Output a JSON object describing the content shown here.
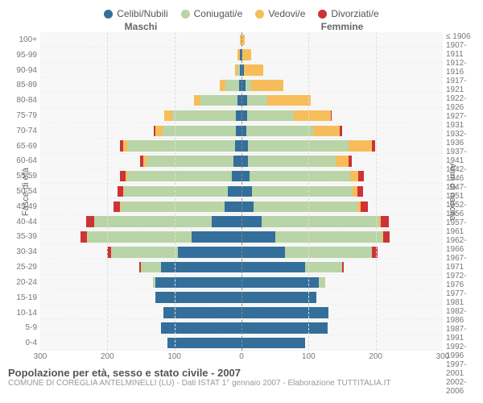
{
  "type": "population-pyramid",
  "legend": [
    {
      "label": "Celibi/Nubili",
      "color": "#346f9b"
    },
    {
      "label": "Coniugati/e",
      "color": "#b9d4a6"
    },
    {
      "label": "Vedovi/e",
      "color": "#f7bd5a"
    },
    {
      "label": "Divorziati/e",
      "color": "#cd3336"
    }
  ],
  "columns": {
    "male": "Maschi",
    "female": "Femmine"
  },
  "axis": {
    "left_title": "Fasce di età",
    "right_title": "Anni di nascita",
    "x_max": 300,
    "x_ticks": [
      300,
      200,
      100,
      0,
      100,
      200,
      300
    ]
  },
  "colors": {
    "single": "#346f9b",
    "married": "#b9d4a6",
    "widowed": "#f7bd5a",
    "divorced": "#cd3336",
    "bg": "#f7f7f7",
    "grid": "#dddddd",
    "zero": "#888888"
  },
  "footer": {
    "title": "Popolazione per età, sesso e stato civile - 2007",
    "sub": "COMUNE DI COREGLIA ANTELMINELLI (LU) - Dati ISTAT 1° gennaio 2007 - Elaborazione TUTTITALIA.IT"
  },
  "age_labels": [
    "100+",
    "95-99",
    "90-94",
    "85-89",
    "80-84",
    "75-79",
    "70-74",
    "65-69",
    "60-64",
    "55-59",
    "50-54",
    "45-49",
    "40-44",
    "35-39",
    "30-34",
    "25-29",
    "20-24",
    "15-19",
    "10-14",
    "5-9",
    "0-4"
  ],
  "year_labels": [
    "≤ 1906",
    "1907-1911",
    "1912-1916",
    "1917-1921",
    "1922-1926",
    "1927-1931",
    "1932-1936",
    "1937-1941",
    "1942-1946",
    "1947-1951",
    "1952-1956",
    "1957-1961",
    "1962-1966",
    "1967-1971",
    "1972-1976",
    "1977-1981",
    "1982-1986",
    "1987-1991",
    "1992-1996",
    "1997-2001",
    "2002-2006"
  ],
  "rows": [
    {
      "m": {
        "s": 0,
        "c": 0,
        "w": 2,
        "d": 0
      },
      "f": {
        "s": 0,
        "c": 0,
        "w": 5,
        "d": 0
      }
    },
    {
      "m": {
        "s": 2,
        "c": 1,
        "w": 3,
        "d": 0
      },
      "f": {
        "s": 1,
        "c": 0,
        "w": 13,
        "d": 0
      }
    },
    {
      "m": {
        "s": 2,
        "c": 4,
        "w": 4,
        "d": 0
      },
      "f": {
        "s": 3,
        "c": 1,
        "w": 28,
        "d": 0
      }
    },
    {
      "m": {
        "s": 4,
        "c": 20,
        "w": 8,
        "d": 0
      },
      "f": {
        "s": 6,
        "c": 8,
        "w": 48,
        "d": 0
      }
    },
    {
      "m": {
        "s": 6,
        "c": 55,
        "w": 10,
        "d": 0
      },
      "f": {
        "s": 8,
        "c": 30,
        "w": 65,
        "d": 0
      }
    },
    {
      "m": {
        "s": 8,
        "c": 95,
        "w": 12,
        "d": 0
      },
      "f": {
        "s": 8,
        "c": 70,
        "w": 55,
        "d": 2
      }
    },
    {
      "m": {
        "s": 8,
        "c": 110,
        "w": 10,
        "d": 3
      },
      "f": {
        "s": 7,
        "c": 100,
        "w": 40,
        "d": 3
      }
    },
    {
      "m": {
        "s": 10,
        "c": 160,
        "w": 6,
        "d": 5
      },
      "f": {
        "s": 9,
        "c": 150,
        "w": 35,
        "d": 5
      }
    },
    {
      "m": {
        "s": 12,
        "c": 130,
        "w": 4,
        "d": 5
      },
      "f": {
        "s": 10,
        "c": 130,
        "w": 20,
        "d": 5
      }
    },
    {
      "m": {
        "s": 15,
        "c": 155,
        "w": 3,
        "d": 8
      },
      "f": {
        "s": 12,
        "c": 150,
        "w": 12,
        "d": 8
      }
    },
    {
      "m": {
        "s": 20,
        "c": 155,
        "w": 2,
        "d": 8
      },
      "f": {
        "s": 15,
        "c": 150,
        "w": 8,
        "d": 8
      }
    },
    {
      "m": {
        "s": 25,
        "c": 155,
        "w": 1,
        "d": 10
      },
      "f": {
        "s": 18,
        "c": 155,
        "w": 5,
        "d": 10
      }
    },
    {
      "m": {
        "s": 45,
        "c": 175,
        "w": 0,
        "d": 12
      },
      "f": {
        "s": 30,
        "c": 175,
        "w": 3,
        "d": 12
      }
    },
    {
      "m": {
        "s": 75,
        "c": 155,
        "w": 0,
        "d": 10
      },
      "f": {
        "s": 50,
        "c": 160,
        "w": 1,
        "d": 10
      }
    },
    {
      "m": {
        "s": 95,
        "c": 100,
        "w": 0,
        "d": 6
      },
      "f": {
        "s": 65,
        "c": 130,
        "w": 0,
        "d": 8
      }
    },
    {
      "m": {
        "s": 120,
        "c": 30,
        "w": 0,
        "d": 2
      },
      "f": {
        "s": 95,
        "c": 55,
        "w": 0,
        "d": 3
      }
    },
    {
      "m": {
        "s": 128,
        "c": 4,
        "w": 0,
        "d": 0
      },
      "f": {
        "s": 115,
        "c": 10,
        "w": 0,
        "d": 0
      }
    },
    {
      "m": {
        "s": 128,
        "c": 0,
        "w": 0,
        "d": 0
      },
      "f": {
        "s": 112,
        "c": 0,
        "w": 0,
        "d": 0
      }
    },
    {
      "m": {
        "s": 117,
        "c": 0,
        "w": 0,
        "d": 0
      },
      "f": {
        "s": 130,
        "c": 0,
        "w": 0,
        "d": 0
      }
    },
    {
      "m": {
        "s": 120,
        "c": 0,
        "w": 0,
        "d": 0
      },
      "f": {
        "s": 128,
        "c": 0,
        "w": 0,
        "d": 0
      }
    },
    {
      "m": {
        "s": 110,
        "c": 0,
        "w": 0,
        "d": 0
      },
      "f": {
        "s": 95,
        "c": 0,
        "w": 0,
        "d": 0
      }
    }
  ]
}
